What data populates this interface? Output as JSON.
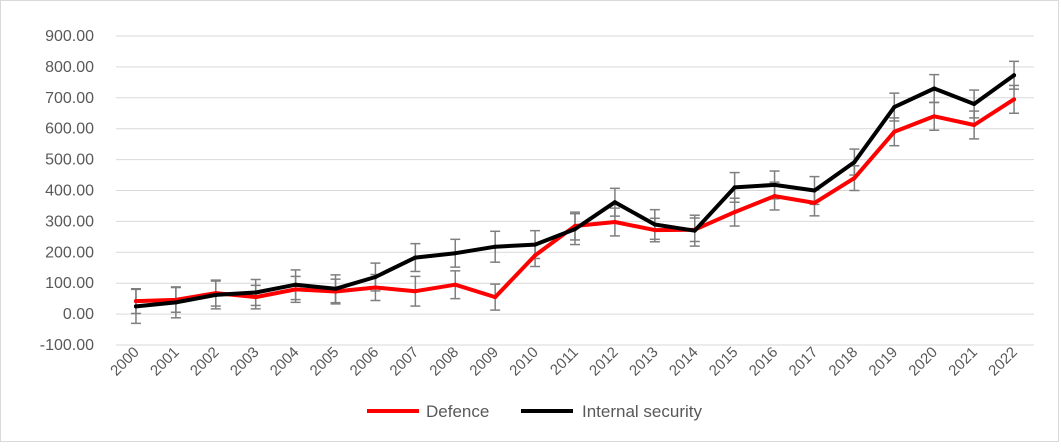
{
  "chart_data": {
    "type": "line",
    "title": "",
    "xlabel": "",
    "ylabel": "",
    "categories": [
      "2000",
      "2001",
      "2002",
      "2003",
      "2004",
      "2005",
      "2006",
      "2007",
      "2008",
      "2009",
      "2010",
      "2011",
      "2012",
      "2013",
      "2014",
      "2015",
      "2016",
      "2017",
      "2018",
      "2019",
      "2020",
      "2021",
      "2022"
    ],
    "y_ticks": [
      "900.00",
      "800.00",
      "700.00",
      "600.00",
      "500.00",
      "400.00",
      "300.00",
      "200.00",
      "100.00",
      "0.00",
      "-100.00"
    ],
    "ylim": [
      -100,
      900
    ],
    "grid": true,
    "legend_position": "bottom",
    "error_bars": true,
    "series": [
      {
        "name": "Defence",
        "color": "#ff0000",
        "values": [
          42,
          46,
          68,
          55,
          80,
          73,
          86,
          74,
          95,
          55,
          190,
          285,
          298,
          272,
          273,
          330,
          382,
          360,
          440,
          590,
          640,
          612,
          695
        ],
        "errors": [
          40,
          40,
          42,
          38,
          42,
          40,
          42,
          48,
          45,
          42,
          36,
          45,
          45,
          38,
          38,
          45,
          45,
          42,
          40,
          45,
          45,
          45,
          45
        ]
      },
      {
        "name": "Internal security",
        "color": "#000000",
        "values": [
          25,
          38,
          62,
          70,
          95,
          82,
          120,
          183,
          197,
          218,
          225,
          275,
          362,
          290,
          270,
          410,
          418,
          400,
          492,
          670,
          730,
          680,
          773
        ],
        "errors": [
          55,
          50,
          45,
          42,
          48,
          45,
          45,
          45,
          45,
          50,
          45,
          50,
          45,
          48,
          50,
          48,
          45,
          45,
          42,
          45,
          45,
          45,
          45
        ]
      }
    ]
  }
}
